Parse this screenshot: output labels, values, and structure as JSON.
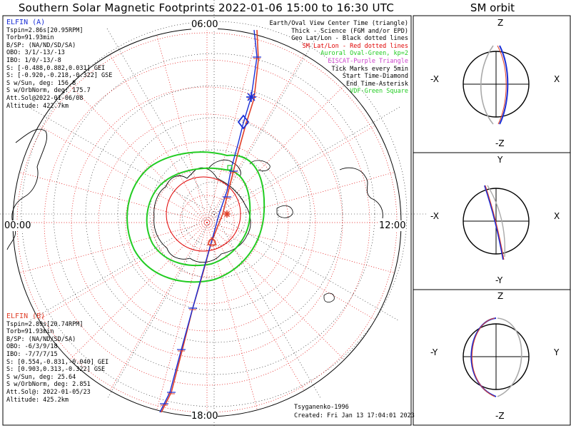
{
  "title": "Southern Solar Magnetic Footprints 2022-01-06 15:00 to 16:30 UTC",
  "orbit_title": "SM orbit",
  "clock_labels": {
    "top": "06:00",
    "left": "00:00",
    "right": "12:00",
    "bottom": "18:00"
  },
  "elfin_a": {
    "title": "ELFIN (A)",
    "lines": [
      "Tspin=2.86s[20.95RPM]",
      "Torb=91.93min",
      "B/SP: (NA/ND/SD/SA)",
      "OBO: 3/1/-13/-13",
      "IBO: 1/0/-13/-8",
      "S: [-0.488,0.882,0.031] GEI",
      "S: [-0.920,-0.218,-0.322] GSE",
      "S w/Sun, deg: 156.8",
      "S w/OrbNorm, deg: 175.7",
      "Att.Sol@2022-01-06/08",
      "Altitude: 422.7km"
    ]
  },
  "elfin_b": {
    "title": "ELFIN (B)",
    "lines": [
      "Tspin=2.89s[20.74RPM]",
      "Torb=91.93min",
      "B/SP: (NA/ND/SD/SA)",
      "OBO: -6/3/9/18",
      "IBO: -7/7/7/15",
      "S: [0.554,-0.831,-0.040] GEI",
      "S: [0.903,0.313,-0.322] GSE",
      "S w/Sun, deg: 25.64",
      "S w/OrbNorm, deg: 2.851",
      "Att.Sol@: 2022-01-05/23",
      "Altitude: 425.2km"
    ]
  },
  "legend": [
    {
      "text": "Earth/Oval View Center Time (triangle)",
      "color": "#000000"
    },
    {
      "text": "Thick - Science (FGM and/or EPD)",
      "color": "#000000"
    },
    {
      "text": "Geo Lat/Lon - Black dotted lines",
      "color": "#000000"
    },
    {
      "text": "SM Lat/Lon - Red dotted lines",
      "color": "#e00000"
    },
    {
      "text": "Auroral Oval-Green, kp=2",
      "color": "#22cc22"
    },
    {
      "text": "EISCAT-Purple Triangle",
      "color": "#cc44cc"
    },
    {
      "text": "Tick Marks every 5min",
      "color": "#000000"
    },
    {
      "text": "Start Time-Diamond",
      "color": "#000000"
    },
    {
      "text": "End Time-Asterisk",
      "color": "#000000"
    },
    {
      "text": "VDF-Green Square",
      "color": "#22cc22"
    }
  ],
  "credits": {
    "author": "Tsyganenko-1996",
    "created": "Created: Fri Jan 13 17:04:01 2023"
  },
  "orbit_panels": [
    {
      "top": "Z",
      "bottom": "-Z",
      "left": "-X",
      "right": "X"
    },
    {
      "top": "Y",
      "bottom": "-Y",
      "left": "-X",
      "right": "X"
    },
    {
      "top": "Z",
      "bottom": "-Z",
      "left": "-Y",
      "right": "Y"
    }
  ],
  "colors": {
    "elfin_a": "#1a2fd6",
    "elfin_b": "#e0402a",
    "sm_grid": "#e00000",
    "oval": "#22cc22",
    "geo_grid": "#000000"
  },
  "chart_data": {
    "type": "polar-map",
    "projection": "south polar, solar magnetic",
    "hemisphere": "southern",
    "time_range": [
      "2022-01-06 15:00",
      "2022-01-06 16:30"
    ],
    "clock_ticks": [
      "06:00",
      "12:00",
      "18:00",
      "00:00"
    ],
    "series": [
      {
        "name": "ELFIN (A)",
        "color": "#1a2fd6"
      },
      {
        "name": "ELFIN (B)",
        "color": "#e0402a"
      }
    ]
  }
}
